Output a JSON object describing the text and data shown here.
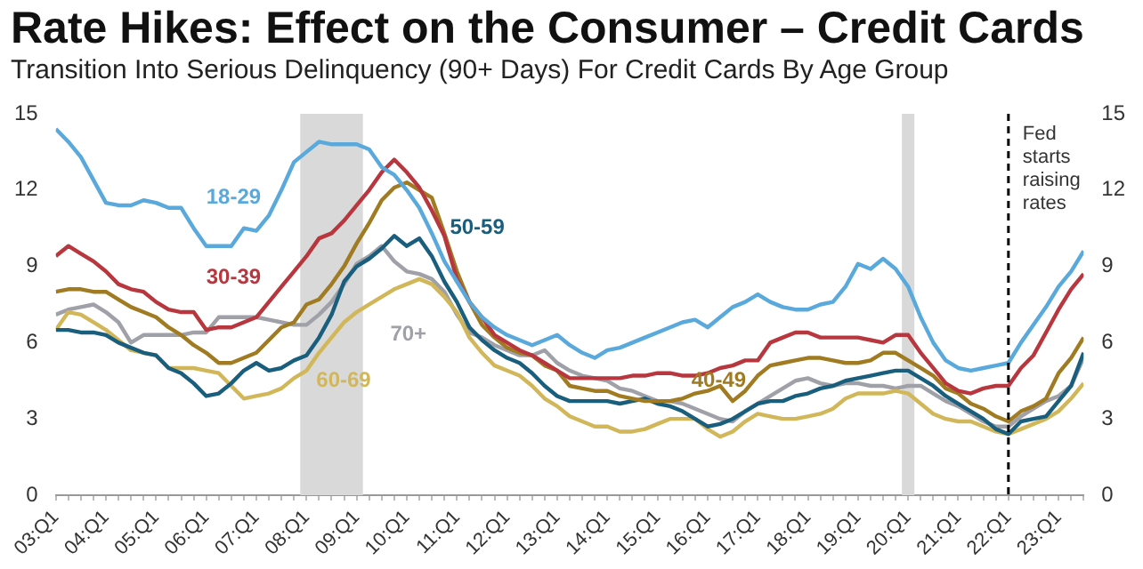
{
  "chart_data": {
    "type": "line",
    "title": "Rate Hikes: Effect on the Consumer – Credit Cards",
    "subtitle": "Transition Into Serious Delinquency (90+ Days) For Credit Cards By Age Group",
    "categories": [
      "03:Q1",
      null,
      null,
      null,
      "04:Q1",
      null,
      null,
      null,
      "05:Q1",
      null,
      null,
      null,
      "06:Q1",
      null,
      null,
      null,
      "07:Q1",
      null,
      null,
      null,
      "08:Q1",
      null,
      null,
      null,
      "09:Q1",
      null,
      null,
      null,
      "10:Q1",
      null,
      null,
      null,
      "11:Q1",
      null,
      null,
      null,
      "12:Q1",
      null,
      null,
      null,
      "13:Q1",
      null,
      null,
      null,
      "14:Q1",
      null,
      null,
      null,
      "15:Q1",
      null,
      null,
      null,
      "16:Q1",
      null,
      null,
      null,
      "17:Q1",
      null,
      null,
      null,
      "18:Q1",
      null,
      null,
      null,
      "19:Q1",
      null,
      null,
      null,
      "20:Q1",
      null,
      null,
      null,
      "21:Q1",
      null,
      null,
      null,
      "22:Q1",
      null,
      null,
      null,
      "23:Q1",
      null,
      null
    ],
    "ylim": [
      0,
      15
    ],
    "yticks": [
      0,
      3,
      6,
      9,
      12,
      15
    ],
    "y2lim": [
      0,
      15
    ],
    "y2ticks": [
      0,
      3,
      6,
      9,
      12,
      15
    ],
    "grid": false,
    "legend": false,
    "marker": "none",
    "bands": [
      {
        "axis": "x",
        "from": "08:Q1",
        "to": "09:Q1",
        "color": "#d9d9d9"
      },
      {
        "axis": "x",
        "from": "20:Q1",
        "to": "20:Q1",
        "color": "#d9d9d9"
      }
    ],
    "ref_lines": [
      {
        "axis": "x",
        "value": "22:Q1",
        "label": "Fed starts raising rates",
        "color": "#000000",
        "line_style": "dashed"
      }
    ],
    "series": [
      {
        "name": "18-29",
        "color": "#5aa9dc",
        "values": [
          14.4,
          13.9,
          13.3,
          12.4,
          11.5,
          11.4,
          11.4,
          11.6,
          11.5,
          11.3,
          11.3,
          10.5,
          9.8,
          9.8,
          9.8,
          10.5,
          10.4,
          11.0,
          12.0,
          13.1,
          13.5,
          13.9,
          13.8,
          13.8,
          13.8,
          13.6,
          12.9,
          12.6,
          12.0,
          11.3,
          10.3,
          9.2,
          8.4,
          7.6,
          7.0,
          6.6,
          6.3,
          6.1,
          5.9,
          6.1,
          6.3,
          5.9,
          5.6,
          5.4,
          5.7,
          5.8,
          6.0,
          6.2,
          6.4,
          6.6,
          6.8,
          6.9,
          6.6,
          7.0,
          7.4,
          7.6,
          7.9,
          7.6,
          7.4,
          7.3,
          7.3,
          7.5,
          7.6,
          8.2,
          9.1,
          8.9,
          9.3,
          8.9,
          8.2,
          7.0,
          6.0,
          5.3,
          5.0,
          4.9,
          5.0,
          5.1,
          5.2,
          6.0,
          6.7,
          7.4,
          8.2,
          8.8,
          9.6
        ]
      },
      {
        "name": "30-39",
        "color": "#b8373e",
        "values": [
          9.4,
          9.8,
          9.5,
          9.2,
          8.8,
          8.3,
          8.1,
          8.0,
          7.6,
          7.3,
          7.2,
          7.2,
          6.5,
          6.6,
          6.6,
          6.8,
          7.0,
          7.6,
          8.2,
          8.8,
          9.4,
          10.1,
          10.3,
          10.8,
          11.4,
          12.0,
          12.7,
          13.2,
          12.7,
          12.1,
          11.2,
          10.2,
          8.5,
          7.6,
          7.0,
          6.3,
          6.0,
          5.7,
          5.5,
          5.2,
          4.9,
          4.6,
          4.6,
          4.6,
          4.6,
          4.6,
          4.7,
          4.7,
          4.8,
          4.8,
          4.7,
          4.7,
          4.8,
          5.0,
          5.1,
          5.3,
          5.3,
          6.0,
          6.2,
          6.4,
          6.4,
          6.2,
          6.2,
          6.2,
          6.2,
          6.1,
          6.0,
          6.3,
          6.3,
          5.6,
          5.0,
          4.4,
          4.1,
          4.0,
          4.2,
          4.3,
          4.3,
          5.0,
          5.5,
          6.4,
          7.3,
          8.1,
          8.7
        ]
      },
      {
        "name": "40-49",
        "color": "#a07b22",
        "values": [
          8.0,
          8.1,
          8.1,
          8.0,
          8.0,
          7.7,
          7.4,
          7.2,
          7.0,
          6.6,
          6.3,
          5.9,
          5.6,
          5.2,
          5.2,
          5.4,
          5.6,
          6.1,
          6.6,
          6.8,
          7.5,
          7.7,
          8.3,
          9.0,
          9.9,
          10.7,
          11.6,
          12.1,
          12.3,
          12.0,
          11.7,
          10.3,
          8.8,
          7.6,
          6.7,
          6.2,
          5.8,
          5.6,
          5.5,
          5.1,
          4.9,
          4.3,
          4.2,
          4.1,
          4.1,
          3.9,
          3.8,
          3.7,
          3.7,
          3.7,
          3.8,
          4.0,
          4.1,
          4.3,
          3.7,
          4.1,
          4.7,
          5.1,
          5.2,
          5.3,
          5.4,
          5.4,
          5.3,
          5.2,
          5.2,
          5.3,
          5.6,
          5.6,
          5.3,
          5.0,
          4.7,
          4.2,
          4.0,
          3.6,
          3.4,
          3.1,
          2.9,
          3.3,
          3.5,
          3.8,
          4.8,
          5.4,
          6.2
        ]
      },
      {
        "name": "50-59",
        "color": "#1a5e7e",
        "values": [
          6.5,
          6.5,
          6.4,
          6.4,
          6.3,
          6.0,
          5.8,
          5.6,
          5.5,
          5.0,
          4.8,
          4.4,
          3.9,
          4.0,
          4.4,
          4.9,
          5.2,
          4.9,
          5.0,
          5.3,
          5.5,
          6.2,
          7.1,
          8.4,
          9.0,
          9.3,
          9.7,
          10.2,
          9.8,
          10.1,
          9.4,
          8.4,
          7.6,
          6.6,
          6.1,
          5.7,
          5.4,
          5.2,
          4.8,
          4.3,
          3.9,
          3.7,
          3.7,
          3.7,
          3.7,
          3.6,
          3.7,
          3.8,
          3.6,
          3.5,
          3.3,
          3.0,
          2.7,
          2.8,
          3.0,
          3.3,
          3.6,
          3.7,
          3.7,
          3.9,
          4.0,
          4.2,
          4.3,
          4.5,
          4.6,
          4.7,
          4.8,
          4.9,
          4.9,
          4.6,
          4.3,
          3.9,
          3.6,
          3.3,
          3.0,
          2.6,
          2.4,
          2.9,
          3.0,
          3.1,
          3.7,
          4.3,
          5.6
        ]
      },
      {
        "name": "60-69",
        "color": "#d2b75a",
        "values": [
          6.5,
          7.2,
          7.1,
          6.8,
          6.5,
          6.1,
          5.7,
          5.6,
          5.5,
          5.0,
          5.0,
          5.0,
          4.9,
          4.8,
          4.3,
          3.8,
          3.9,
          4.0,
          4.2,
          4.6,
          4.9,
          5.6,
          6.2,
          6.8,
          7.2,
          7.5,
          7.8,
          8.1,
          8.3,
          8.5,
          8.3,
          7.8,
          7.2,
          6.2,
          5.6,
          5.1,
          4.9,
          4.7,
          4.3,
          3.8,
          3.5,
          3.1,
          2.9,
          2.7,
          2.7,
          2.5,
          2.5,
          2.6,
          2.8,
          3.0,
          3.0,
          3.0,
          2.6,
          2.3,
          2.5,
          2.9,
          3.2,
          3.1,
          3.0,
          3.0,
          3.1,
          3.2,
          3.4,
          3.8,
          4.0,
          4.0,
          4.0,
          4.1,
          4.0,
          3.6,
          3.2,
          3.0,
          2.9,
          2.9,
          2.7,
          2.5,
          2.4,
          2.6,
          2.8,
          3.0,
          3.3,
          3.8,
          4.4
        ]
      },
      {
        "name": "70+",
        "color": "#a0a0a8",
        "values": [
          7.1,
          7.3,
          7.4,
          7.5,
          7.2,
          6.8,
          6.0,
          6.3,
          6.3,
          6.3,
          6.3,
          6.4,
          6.4,
          7.0,
          7.0,
          7.0,
          7.0,
          6.9,
          6.8,
          6.7,
          6.7,
          7.1,
          7.6,
          8.3,
          9.1,
          9.4,
          9.8,
          9.2,
          8.8,
          8.7,
          8.5,
          8.0,
          7.1,
          6.4,
          6.2,
          5.9,
          5.7,
          5.5,
          5.5,
          5.7,
          5.2,
          4.9,
          4.7,
          4.6,
          4.5,
          4.2,
          4.1,
          3.9,
          3.7,
          3.7,
          3.6,
          3.4,
          3.2,
          3.0,
          2.9,
          3.3,
          3.6,
          3.9,
          4.2,
          4.5,
          4.6,
          4.4,
          4.3,
          4.4,
          4.4,
          4.3,
          4.3,
          4.2,
          4.3,
          4.3,
          4.0,
          3.7,
          3.5,
          3.2,
          2.9,
          2.7,
          2.7,
          3.1,
          3.4,
          3.7,
          3.9,
          4.3,
          5.4
        ]
      }
    ]
  }
}
